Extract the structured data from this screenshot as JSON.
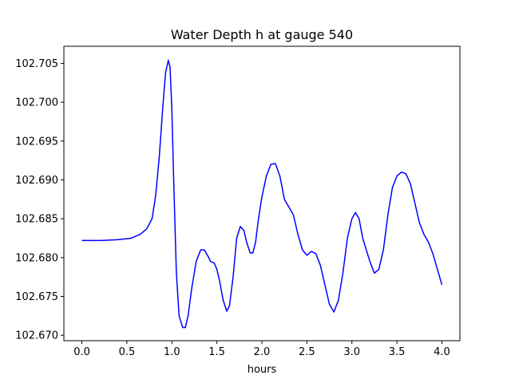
{
  "chart_data": {
    "type": "line",
    "title": "Water Depth h at gauge 540",
    "xlabel": "hours",
    "ylabel": "",
    "xlim": [
      -0.2,
      4.2
    ],
    "ylim": [
      102.6693,
      102.7072
    ],
    "xticks": [
      "0.0",
      "0.5",
      "1.0",
      "1.5",
      "2.0",
      "2.5",
      "3.0",
      "3.5",
      "4.0"
    ],
    "yticks": [
      "102.670",
      "102.675",
      "102.680",
      "102.685",
      "102.690",
      "102.695",
      "102.700",
      "102.705"
    ],
    "grid": false,
    "legend": "none",
    "series": [
      {
        "color": "#0000ff",
        "x": [
          0.0,
          0.2,
          0.4,
          0.55,
          0.65,
          0.72,
          0.78,
          0.82,
          0.86,
          0.9,
          0.93,
          0.96,
          0.98,
          1.0,
          1.02,
          1.05,
          1.08,
          1.12,
          1.15,
          1.18,
          1.22,
          1.27,
          1.32,
          1.36,
          1.4,
          1.43,
          1.47,
          1.5,
          1.53,
          1.57,
          1.61,
          1.64,
          1.68,
          1.72,
          1.76,
          1.8,
          1.83,
          1.87,
          1.9,
          1.93,
          1.96,
          2.0,
          2.05,
          2.1,
          2.15,
          2.2,
          2.25,
          2.3,
          2.35,
          2.4,
          2.45,
          2.5,
          2.55,
          2.6,
          2.65,
          2.7,
          2.75,
          2.8,
          2.85,
          2.9,
          2.95,
          3.0,
          3.04,
          3.08,
          3.12,
          3.16,
          3.2,
          3.25,
          3.3,
          3.35,
          3.4,
          3.45,
          3.5,
          3.55,
          3.6,
          3.65,
          3.7,
          3.75,
          3.8,
          3.85,
          3.9,
          3.95,
          4.0
        ],
        "y": [
          102.6822,
          102.6822,
          102.6823,
          102.6825,
          102.683,
          102.6837,
          102.685,
          102.688,
          102.693,
          102.6995,
          102.7038,
          102.7054,
          102.7045,
          102.699,
          102.69,
          102.678,
          102.6725,
          102.671,
          102.671,
          102.6725,
          102.676,
          102.6795,
          102.681,
          102.681,
          102.6802,
          102.6795,
          102.6793,
          102.6785,
          102.677,
          102.6745,
          102.6731,
          102.6738,
          102.6775,
          102.6825,
          102.684,
          102.6835,
          102.682,
          102.6806,
          102.6806,
          102.682,
          102.6848,
          102.6878,
          102.6905,
          102.692,
          102.6921,
          102.6905,
          102.6875,
          102.6865,
          102.6855,
          102.683,
          102.681,
          102.6803,
          102.6808,
          102.6805,
          102.679,
          102.6765,
          102.674,
          102.673,
          102.6745,
          102.678,
          102.6825,
          102.685,
          102.6858,
          102.685,
          102.6825,
          102.681,
          102.6795,
          102.678,
          102.6785,
          102.681,
          102.6855,
          102.689,
          102.6905,
          102.691,
          102.6908,
          102.6895,
          102.687,
          102.6845,
          102.683,
          102.682,
          102.6805,
          102.6785,
          102.6765
        ]
      }
    ]
  }
}
